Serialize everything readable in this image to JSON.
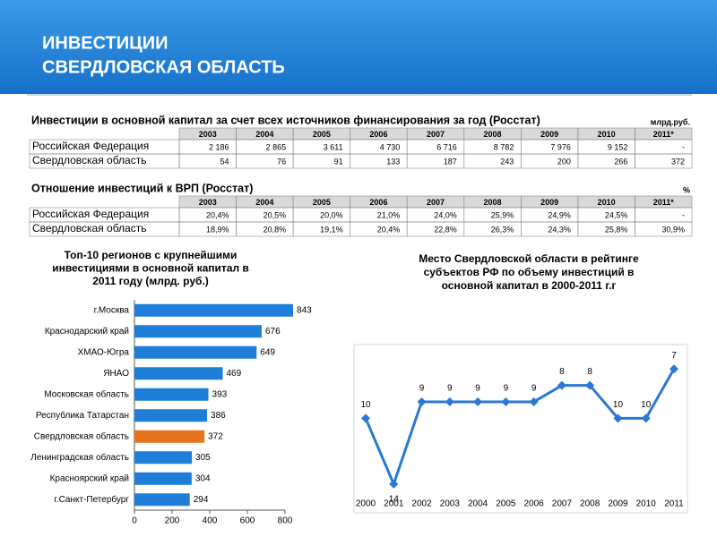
{
  "header": {
    "title": [
      "ИНВЕСТИЦИИ",
      "СВЕРДЛОВСКАЯ ОБЛАСТЬ"
    ]
  },
  "tables": [
    {
      "title": "Инвестиции в основной капитал за счет всех источников финансирования за год (Росстат)",
      "unit": "млрд.руб.",
      "columns": [
        "2003",
        "2004",
        "2005",
        "2006",
        "2007",
        "2008",
        "2009",
        "2010",
        "2011*"
      ],
      "rows": [
        [
          "Российская Федерация",
          "2 186",
          "2 865",
          "3 611",
          "4 730",
          "6 716",
          "8 782",
          "7 976",
          "9 152",
          "-"
        ],
        [
          "Свердловская область",
          "54",
          "76",
          "91",
          "133",
          "187",
          "243",
          "200",
          "266",
          "372"
        ]
      ]
    },
    {
      "title": "Отношение инвестиций к ВРП (Росстат)",
      "unit": "%",
      "columns": [
        "2003",
        "2004",
        "2005",
        "2006",
        "2007",
        "2008",
        "2009",
        "2010",
        "2011*"
      ],
      "rows": [
        [
          "Российская Федерация",
          "20,4%",
          "20,5%",
          "20,0%",
          "21,0%",
          "24,0%",
          "25,9%",
          "24,9%",
          "24,5%",
          "-"
        ],
        [
          "Свердловская область",
          "18,9%",
          "20,8%",
          "19,1%",
          "20,4%",
          "22,8%",
          "26,3%",
          "24,3%",
          "25,8%",
          "30,9%"
        ]
      ]
    }
  ],
  "chart_data": [
    {
      "type": "barh",
      "title": [
        "Топ-10 регионов с крупнейшими",
        "инвестициями в основной капитал в",
        "2011 году (млрд. руб.)"
      ],
      "categories": [
        "г.Москва",
        "Краснодарский край",
        "ХМАО-Югра",
        "ЯНАО",
        "Московская область",
        "Республика Татарстан",
        "Свердловская область",
        "Ленинградская область",
        "Красноярский край",
        "г.Санкт-Петербург"
      ],
      "values": [
        843,
        676,
        649,
        469,
        393,
        386,
        372,
        305,
        304,
        294
      ],
      "colors": [
        "#1f7fd8",
        "#1f7fd8",
        "#1f7fd8",
        "#1f7fd8",
        "#1f7fd8",
        "#1f7fd8",
        "#e8731f",
        "#1f7fd8",
        "#1f7fd8",
        "#1f7fd8"
      ],
      "xlim": [
        0,
        800
      ],
      "xticks": [
        0,
        200,
        400,
        600,
        800
      ]
    },
    {
      "type": "line",
      "title": [
        "Место Свердловской области в рейтинге",
        "субъектов РФ по объему инвестиций в",
        "основной капитал в 2000-2011 г.г"
      ],
      "categories": [
        "2000",
        "2001",
        "2002",
        "2003",
        "2004",
        "2005",
        "2006",
        "2007",
        "2008",
        "2009",
        "2010",
        "2011"
      ],
      "values": [
        10,
        14,
        9,
        9,
        9,
        9,
        9,
        8,
        8,
        10,
        10,
        7
      ],
      "color": "#2a78d4",
      "ylim": [
        14.5,
        6.5
      ]
    }
  ]
}
